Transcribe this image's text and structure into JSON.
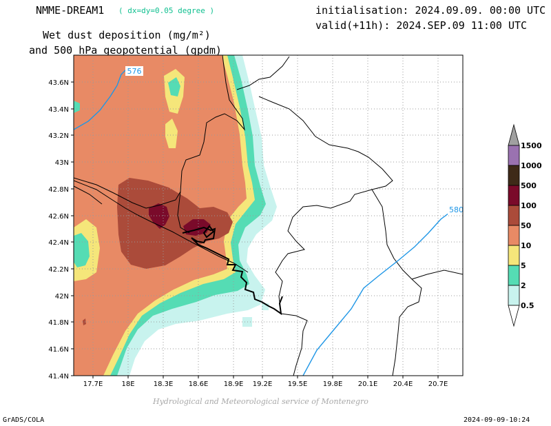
{
  "header": {
    "model": "NMME-DREAM1",
    "resolution": "( dx=dy=0.05 degree )",
    "title_line1": "Wet dust deposition (mg/m²)",
    "title_line2": "and 500 hPa geopotential (gpdm)",
    "init": "initialisation: 2024.09.09. 00:00 UTC",
    "valid": "valid(+11h): 2024.SEP.09 11:00 UTC"
  },
  "footer": {
    "credit": "Hydrological and Meteorological service of Montenegro",
    "software": "GrADS/COLA",
    "timestamp": "2024-09-09-10:24"
  },
  "map": {
    "lat_labels": [
      "43.6N",
      "43.4N",
      "43.2N",
      "43N",
      "42.8N",
      "42.6N",
      "42.4N",
      "42.2N",
      "42N",
      "41.8N",
      "41.6N",
      "41.4N"
    ],
    "lon_labels": [
      "17.7E",
      "18E",
      "18.3E",
      "18.6E",
      "18.9E",
      "19.2E",
      "19.5E",
      "19.8E",
      "20.1E",
      "20.4E",
      "20.7E"
    ],
    "contours": [
      "576",
      "580"
    ],
    "contour_color": "#1e96e6"
  },
  "colorbar": {
    "labels": [
      "1500",
      "1000",
      "500",
      "100",
      "50",
      "10",
      "5",
      "2",
      "0.5"
    ],
    "colors": [
      "#9a72b0",
      "#3e2a18",
      "#7a0a2a",
      "#ab4b3a",
      "#e88a65",
      "#f5e67a",
      "#55dcb4",
      "#c8f3ee"
    ]
  }
}
